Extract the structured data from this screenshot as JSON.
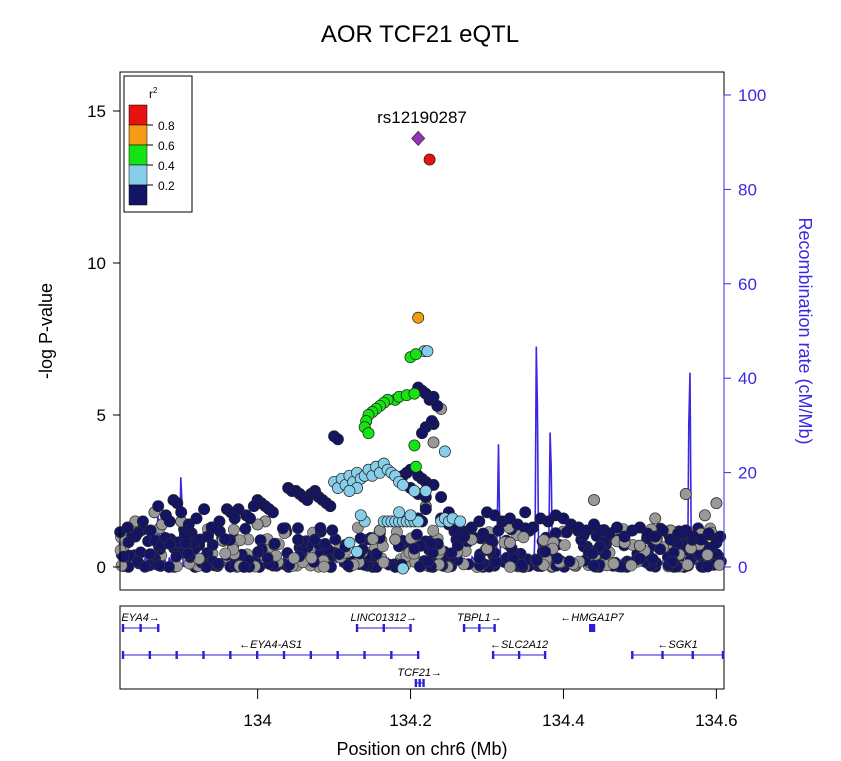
{
  "chart_data": {
    "type": "scatter",
    "title": "AOR TCF21 eQTL",
    "xlabel": "Position on chr6 (Mb)",
    "ylabel": "-log P-value",
    "y2label": "Recombination rate (cM/Mb)",
    "xlim": [
      133.82,
      134.61
    ],
    "ylim": [
      0,
      15.5
    ],
    "y2lim": [
      0,
      100
    ],
    "x_ticks": [
      "134",
      "134.2",
      "134.4",
      "134.6"
    ],
    "x_tick_values": [
      134.0,
      134.2,
      134.4,
      134.6
    ],
    "y_ticks": [
      "0",
      "5",
      "10",
      "15"
    ],
    "y_tick_values": [
      0,
      5,
      10,
      15
    ],
    "y2_ticks": [
      "0",
      "20",
      "40",
      "60",
      "80",
      "100"
    ],
    "y2_tick_values": [
      0,
      20,
      40,
      60,
      80,
      100
    ],
    "grid": false,
    "colors": {
      "recombination": "#3b28e0",
      "r2_0.8_1.0": "#e8130f",
      "r2_0.6_0.8": "#f59b14",
      "r2_0.4_0.6": "#12e512",
      "r2_0.2_0.4": "#87ceeb",
      "r2_0.0_0.2": "#141466",
      "r2_na": "#999999",
      "index_snp": "#9632b8"
    },
    "legend": {
      "title": "r",
      "title_sup": "2",
      "placement": "top-left",
      "labels": [
        "0.8",
        "0.6",
        "0.4",
        "0.2"
      ]
    },
    "index_snp": {
      "label": "rs12190287",
      "x": 134.21,
      "y": 14.1
    },
    "series": [
      {
        "name": "0.8-1.0",
        "color": "r2_0.8_1.0",
        "points": [
          [
            134.225,
            13.4
          ]
        ]
      },
      {
        "name": "0.6-0.8",
        "color": "r2_0.6_0.8",
        "points": [
          [
            134.21,
            8.2
          ]
        ]
      },
      {
        "name": "0.4-0.6",
        "color": "r2_0.4_0.6",
        "points": [
          [
            134.2,
            6.9
          ],
          [
            134.207,
            7.0
          ],
          [
            134.18,
            5.5
          ],
          [
            134.185,
            5.6
          ],
          [
            134.195,
            5.65
          ],
          [
            134.205,
            5.7
          ],
          [
            134.17,
            5.5
          ],
          [
            134.165,
            5.4
          ],
          [
            134.16,
            5.3
          ],
          [
            134.155,
            5.2
          ],
          [
            134.15,
            5.1
          ],
          [
            134.145,
            5.0
          ],
          [
            134.142,
            4.8
          ],
          [
            134.14,
            4.6
          ],
          [
            134.145,
            4.4
          ],
          [
            134.205,
            4.0
          ],
          [
            134.207,
            3.3
          ]
        ]
      },
      {
        "name": "0.2-0.4",
        "color": "r2_0.2_0.4",
        "points": [
          [
            134.218,
            7.1
          ],
          [
            134.222,
            7.1
          ],
          [
            134.245,
            3.8
          ],
          [
            134.205,
            2.5
          ],
          [
            134.22,
            2.5
          ],
          [
            134.1,
            2.8
          ],
          [
            134.105,
            2.6
          ],
          [
            134.11,
            2.9
          ],
          [
            134.115,
            2.7
          ],
          [
            134.12,
            3.0
          ],
          [
            134.125,
            2.8
          ],
          [
            134.13,
            3.1
          ],
          [
            134.135,
            2.9
          ],
          [
            134.14,
            3.0
          ],
          [
            134.145,
            3.2
          ],
          [
            134.15,
            3.0
          ],
          [
            134.155,
            3.3
          ],
          [
            134.16,
            3.1
          ],
          [
            134.165,
            3.4
          ],
          [
            134.17,
            3.2
          ],
          [
            134.175,
            3.1
          ],
          [
            134.18,
            3.0
          ],
          [
            134.13,
            2.6
          ],
          [
            134.12,
            2.5
          ],
          [
            134.185,
            2.8
          ],
          [
            134.19,
            2.7
          ],
          [
            134.165,
            1.5
          ],
          [
            134.17,
            1.5
          ],
          [
            134.175,
            1.5
          ],
          [
            134.18,
            1.5
          ],
          [
            134.185,
            1.5
          ],
          [
            134.19,
            1.5
          ],
          [
            134.195,
            1.5
          ],
          [
            134.2,
            1.5
          ],
          [
            134.205,
            1.5
          ],
          [
            134.21,
            1.5
          ],
          [
            134.24,
            1.5
          ],
          [
            134.245,
            1.6
          ],
          [
            134.25,
            1.5
          ],
          [
            134.255,
            1.6
          ],
          [
            134.14,
            1.5
          ],
          [
            134.135,
            1.7
          ],
          [
            134.265,
            1.5
          ],
          [
            134.2,
            1.7
          ],
          [
            134.185,
            1.8
          ],
          [
            134.12,
            0.8
          ],
          [
            134.13,
            0.5
          ],
          [
            134.19,
            -0.05
          ]
        ]
      },
      {
        "name": "0.0-0.2",
        "color": "r2_0.0_0.2",
        "points": [
          [
            134.1,
            4.3
          ],
          [
            134.105,
            4.2
          ],
          [
            134.21,
            5.9
          ],
          [
            134.215,
            5.8
          ],
          [
            134.22,
            5.7
          ],
          [
            134.225,
            5.5
          ],
          [
            134.23,
            5.6
          ],
          [
            134.235,
            5.3
          ],
          [
            134.23,
            4.7
          ],
          [
            134.22,
            4.6
          ],
          [
            134.215,
            4.4
          ],
          [
            134.228,
            4.8
          ],
          [
            134.21,
            3.0
          ],
          [
            134.215,
            2.9
          ],
          [
            134.22,
            2.8
          ],
          [
            134.195,
            3.1
          ],
          [
            134.2,
            3.2
          ],
          [
            134.19,
            3.0
          ],
          [
            134.185,
            2.9
          ],
          [
            134.225,
            2.7
          ],
          [
            134.2,
            2.6
          ],
          [
            134.21,
            2.4
          ],
          [
            134.22,
            2.3
          ],
          [
            134.23,
            2.7
          ],
          [
            134.21,
            1.6
          ],
          [
            134.215,
            1.5
          ],
          [
            134.24,
            1.6
          ],
          [
            134.25,
            1.8
          ],
          [
            134.22,
            1.9
          ],
          [
            134.24,
            2.3
          ],
          [
            134.04,
            2.6
          ],
          [
            134.045,
            2.5
          ],
          [
            134.05,
            2.5
          ],
          [
            134.055,
            2.4
          ],
          [
            134.06,
            2.3
          ],
          [
            134.065,
            2.2
          ],
          [
            134.07,
            2.4
          ],
          [
            134.075,
            2.5
          ],
          [
            134.08,
            2.3
          ],
          [
            134.085,
            2.2
          ],
          [
            134.09,
            2.1
          ],
          [
            134.095,
            2.0
          ],
          [
            134.0,
            2.2
          ],
          [
            134.005,
            2.1
          ],
          [
            134.01,
            2.0
          ],
          [
            134.015,
            1.9
          ],
          [
            134.02,
            1.8
          ],
          [
            133.96,
            1.9
          ],
          [
            133.965,
            1.8
          ],
          [
            133.97,
            1.6
          ],
          [
            133.975,
            1.9
          ],
          [
            133.985,
            1.7
          ],
          [
            133.99,
            1.6
          ],
          [
            133.995,
            2.0
          ],
          [
            133.83,
            1.3
          ],
          [
            133.84,
            1.0
          ],
          [
            133.85,
            1.5
          ],
          [
            133.86,
            1.2
          ],
          [
            133.87,
            2.0
          ],
          [
            133.88,
            1.7
          ],
          [
            133.885,
            1.5
          ],
          [
            133.89,
            2.2
          ],
          [
            133.895,
            2.1
          ],
          [
            133.9,
            1.8
          ],
          [
            133.91,
            1.4
          ],
          [
            133.92,
            1.6
          ],
          [
            133.93,
            1.9
          ],
          [
            133.94,
            1.3
          ],
          [
            133.95,
            1.5
          ],
          [
            133.905,
            1.1
          ],
          [
            133.925,
            0.9
          ],
          [
            133.935,
            1.0
          ],
          [
            134.3,
            1.8
          ],
          [
            134.31,
            1.7
          ],
          [
            134.32,
            1.5
          ],
          [
            134.33,
            1.6
          ],
          [
            134.34,
            1.4
          ],
          [
            134.35,
            1.8
          ],
          [
            134.36,
            1.3
          ],
          [
            134.37,
            1.6
          ],
          [
            134.38,
            1.5
          ],
          [
            134.39,
            1.7
          ],
          [
            134.4,
            1.6
          ],
          [
            134.41,
            1.4
          ],
          [
            134.42,
            1.3
          ],
          [
            134.43,
            1.2
          ],
          [
            134.44,
            1.4
          ],
          [
            134.45,
            1.2
          ],
          [
            134.46,
            1.1
          ],
          [
            134.47,
            1.3
          ],
          [
            134.48,
            1.0
          ],
          [
            134.49,
            1.2
          ],
          [
            134.5,
            1.3
          ],
          [
            134.51,
            1.1
          ],
          [
            134.52,
            1.0
          ],
          [
            134.53,
            1.2
          ],
          [
            134.54,
            0.9
          ],
          [
            134.55,
            1.1
          ],
          [
            134.56,
            1.2
          ],
          [
            134.57,
            1.0
          ],
          [
            134.58,
            0.9
          ],
          [
            134.59,
            1.1
          ],
          [
            134.6,
            0.8
          ],
          [
            134.605,
            1.0
          ],
          [
            134.25,
            1.4
          ],
          [
            134.26,
            1.2
          ],
          [
            134.27,
            1.0
          ],
          [
            134.28,
            1.3
          ],
          [
            134.29,
            1.5
          ],
          [
            134.295,
            1.1
          ],
          [
            134.305,
            0.9
          ],
          [
            134.315,
            1.2
          ]
        ]
      },
      {
        "name": "NA",
        "color": "r2_na",
        "points": [
          [
            134.24,
            5.2
          ],
          [
            134.23,
            4.1
          ],
          [
            134.22,
            2.0
          ],
          [
            133.865,
            1.8
          ],
          [
            133.875,
            1.4
          ],
          [
            134.01,
            1.5
          ],
          [
            134.0,
            1.4
          ],
          [
            134.44,
            2.2
          ],
          [
            134.56,
            2.4
          ],
          [
            134.585,
            1.7
          ],
          [
            134.6,
            2.1
          ],
          [
            134.52,
            1.6
          ],
          [
            134.54,
            1.2
          ],
          [
            134.58,
            1.1
          ],
          [
            134.48,
            0.8
          ],
          [
            134.5,
            0.7
          ],
          [
            133.84,
            1.5
          ],
          [
            133.9,
            1.5
          ],
          [
            134.16,
            1.2
          ],
          [
            134.18,
            0.9
          ],
          [
            134.28,
            0.9
          ],
          [
            134.3,
            0.6
          ],
          [
            134.33,
            0.8
          ]
        ]
      }
    ],
    "recombination_spikes": [
      {
        "x": 133.825,
        "y": 5
      },
      {
        "x": 133.87,
        "y": 14
      },
      {
        "x": 133.9,
        "y": 24
      },
      {
        "x": 134.115,
        "y": 6
      },
      {
        "x": 134.315,
        "y": 26
      },
      {
        "x": 134.365,
        "y": 59
      },
      {
        "x": 134.383,
        "y": 36
      },
      {
        "x": 134.565,
        "y": 52
      }
    ],
    "genes": [
      {
        "name": "EYA4",
        "dir": "→",
        "start": 133.82,
        "end": 133.87,
        "row": 0
      },
      {
        "name": "EYA4-AS1",
        "dir": "←",
        "start": 133.82,
        "end": 134.21,
        "row": 1
      },
      {
        "name": "LINC01312",
        "dir": "→",
        "start": 134.13,
        "end": 134.2,
        "row": 0
      },
      {
        "name": "TCF21",
        "dir": "→",
        "start": 134.207,
        "end": 134.217,
        "row": 2
      },
      {
        "name": "TBPL1",
        "dir": "→",
        "start": 134.27,
        "end": 134.31,
        "row": 0
      },
      {
        "name": "SLC2A12",
        "dir": "←",
        "start": 134.308,
        "end": 134.376,
        "row": 1
      },
      {
        "name": "HMGA1P7",
        "dir": "←",
        "start": 134.435,
        "end": 134.44,
        "row": 0
      },
      {
        "name": "SGK1",
        "dir": "←",
        "start": 134.49,
        "end": 134.61,
        "row": 1
      }
    ]
  }
}
